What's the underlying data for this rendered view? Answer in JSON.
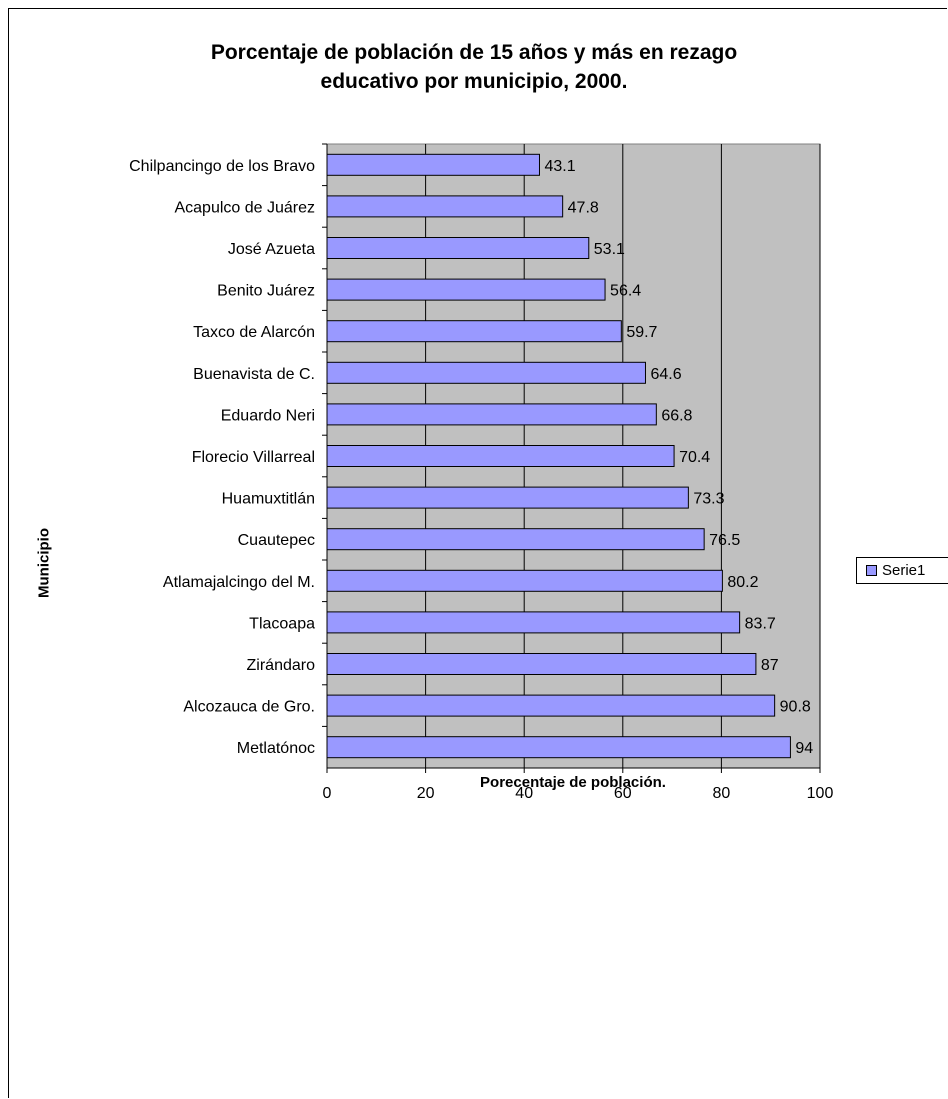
{
  "chart_data": {
    "type": "bar",
    "orientation": "horizontal",
    "title": "Porcentaje de población de 15 años y más en rezago\neducativo por municipio, 2000.",
    "xlabel": "Porecentaje de población.",
    "ylabel": "Municipio",
    "categories": [
      "Chilpancingo de los Bravo",
      "Acapulco de Juárez",
      "José Azueta",
      "Benito Juárez",
      "Taxco de Alarcón",
      "Buenavista de C.",
      "Eduardo Neri",
      "Florecio Villarreal",
      "Huamuxtitlán",
      "Cuautepec",
      "Atlamajalcingo del M.",
      "Tlacoapa",
      "Zirándaro",
      "Alcozauca de Gro.",
      "Metlatónoc"
    ],
    "series": [
      {
        "name": "Serie1",
        "values": [
          43.1,
          47.8,
          53.1,
          56.4,
          59.7,
          64.6,
          66.8,
          70.4,
          73.3,
          76.5,
          80.2,
          83.7,
          87,
          90.8,
          94
        ]
      }
    ],
    "value_labels": [
      "43.1",
      "47.8",
      "53.1",
      "56.4",
      "59.7",
      "64.6",
      "66.8",
      "70.4",
      "73.3",
      "76.5",
      "80.2",
      "83.7",
      "87",
      "90.8",
      "94"
    ],
    "xlim": [
      0,
      100
    ],
    "xticks": [
      "0",
      "20",
      "40",
      "60",
      "80",
      "100"
    ],
    "grid": true,
    "legend_position": "right",
    "colors": {
      "bar_fill": "#9999FF",
      "plot_background": "#C0C0C0",
      "grid": "#000000"
    }
  }
}
